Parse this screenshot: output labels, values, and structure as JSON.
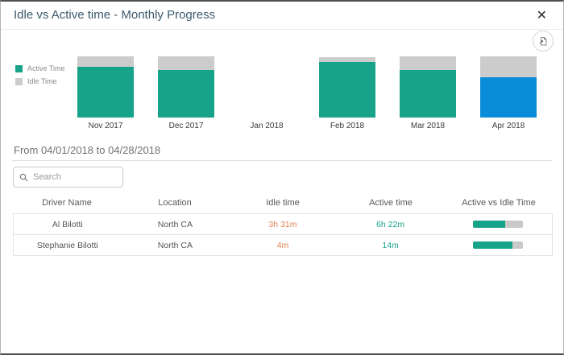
{
  "dialog": {
    "title": "Idle vs Active time - Monthly Progress",
    "close_label": "✕"
  },
  "icons": {
    "export": "export-image-icon",
    "search": "search-icon",
    "close": "close-icon"
  },
  "chart_data": {
    "type": "bar",
    "stacked": true,
    "unit": "percent",
    "title": "Idle vs Active time - Monthly Progress",
    "categories": [
      "Nov 2017",
      "Dec 2017",
      "Jan 2018",
      "Feb 2018",
      "Mar 2018",
      "Apr 2018"
    ],
    "series": [
      {
        "name": "Active Time",
        "values": [
          83,
          77,
          0,
          91,
          78,
          66
        ]
      },
      {
        "name": "Idle Time",
        "values": [
          17,
          23,
          0,
          8,
          22,
          34
        ]
      }
    ],
    "selected_category": "Apr 2018",
    "legend_position": "left",
    "ylim": [
      0,
      100
    ],
    "grid": false,
    "colors": {
      "active": "#17a28a",
      "idle": "#cccccc",
      "selected_active": "#0a8dd8"
    }
  },
  "period": {
    "label": "From 04/01/2018 to 04/28/2018"
  },
  "search": {
    "placeholder": "Search",
    "value": ""
  },
  "table": {
    "columns": [
      "Driver Name",
      "Location",
      "Idle time",
      "Active time",
      "Active vs Idle Time"
    ],
    "rows": [
      {
        "driver": "Al Bilotti",
        "location": "North CA",
        "idle": "3h 31m",
        "active": "6h 22m",
        "active_pct": 64
      },
      {
        "driver": "Stephanie Bilotti",
        "location": "North CA",
        "idle": "4m",
        "active": "14m",
        "active_pct": 78
      }
    ]
  }
}
